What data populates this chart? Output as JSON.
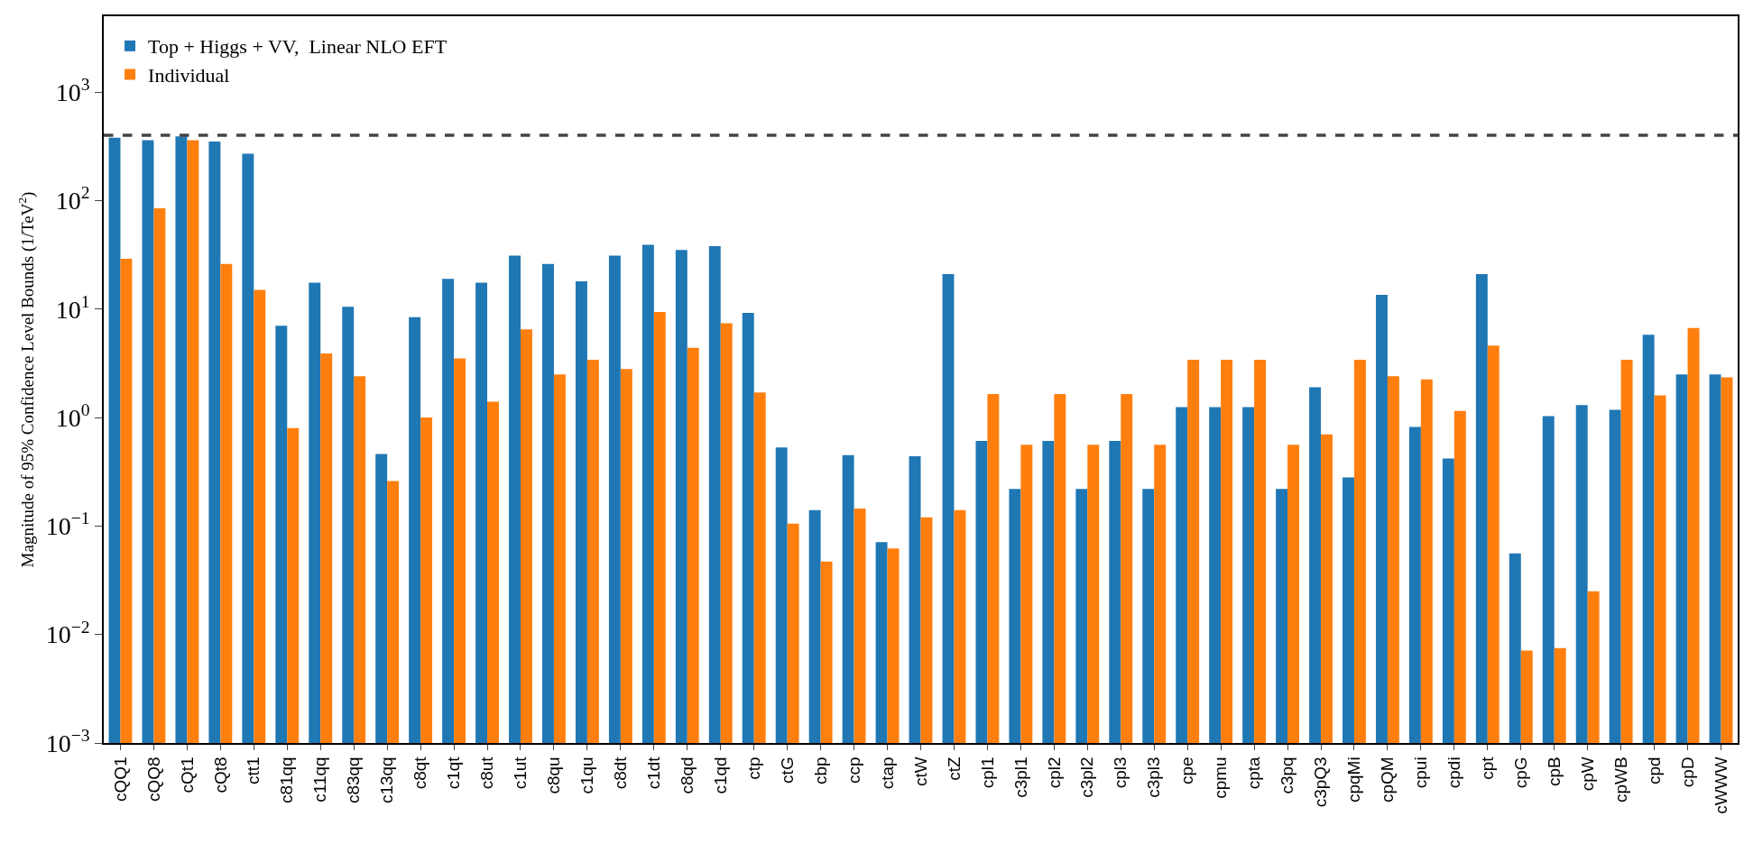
{
  "chart_data": {
    "type": "bar",
    "ylabel": "Magnitude of 95% Confidence Level Bounds (1/TeV$^{2}$)",
    "categories": [
      "cQQ1",
      "cQQ8",
      "cQt1",
      "cQt8",
      "ctt1",
      "c81qq",
      "c11qq",
      "c83qq",
      "c13qq",
      "c8qt",
      "c1qt",
      "c8ut",
      "c1ut",
      "c8qu",
      "c1qu",
      "c8dt",
      "c1dt",
      "c8qd",
      "c1qd",
      "ctp",
      "ctG",
      "cbp",
      "ccp",
      "ctap",
      "ctW",
      "ctZ",
      "cpl1",
      "c3pl1",
      "cpl2",
      "c3pl2",
      "cpl3",
      "c3pl3",
      "cpe",
      "cpmu",
      "cpta",
      "c3pq",
      "c3pQ3",
      "cpqMi",
      "cpQM",
      "cpui",
      "cpdi",
      "cpt",
      "cpG",
      "cpB",
      "cpW",
      "cpWB",
      "cpd",
      "cpD",
      "cWWW"
    ],
    "series": [
      {
        "name": "Top + Higgs + VV,  Linear NLO EFT",
        "color": "#1f77b4",
        "values": [
          380,
          360,
          390,
          350,
          270,
          7,
          17.5,
          10.5,
          0.46,
          8.4,
          19,
          17.5,
          31,
          26,
          18,
          31,
          39,
          35,
          38,
          9.2,
          0.53,
          0.14,
          0.45,
          0.071,
          0.44,
          21,
          0.61,
          0.22,
          0.61,
          0.22,
          0.61,
          0.22,
          1.25,
          1.25,
          1.25,
          0.22,
          1.9,
          0.28,
          13.5,
          0.82,
          0.42,
          21,
          0.056,
          1.03,
          1.3,
          1.18,
          5.8,
          2.5,
          2.5
        ]
      },
      {
        "name": "Individual",
        "color": "#ff7f0e",
        "values": [
          29,
          85,
          360,
          26,
          15,
          0.8,
          3.9,
          2.4,
          0.26,
          1.0,
          3.5,
          1.4,
          6.5,
          2.5,
          3.4,
          2.8,
          9.4,
          4.4,
          7.4,
          1.7,
          0.105,
          0.047,
          0.145,
          0.062,
          0.12,
          0.14,
          1.65,
          0.56,
          1.65,
          0.56,
          1.65,
          0.56,
          3.4,
          3.4,
          3.4,
          0.56,
          0.7,
          3.4,
          2.4,
          2.25,
          1.15,
          4.6,
          0.0071,
          0.0075,
          0.025,
          3.4,
          1.6,
          6.7,
          2.35
        ]
      }
    ],
    "log": "y",
    "ylim": [
      0.001,
      5000
    ],
    "yticks": [
      {
        "value": 0.001,
        "label": "10$^{−3}$"
      },
      {
        "value": 0.01,
        "label": "10$^{−2}$"
      },
      {
        "value": 0.1,
        "label": "10$^{−1}$"
      },
      {
        "value": 1,
        "label": "10$^{0}$"
      },
      {
        "value": 10,
        "label": "10$^{1}$"
      },
      {
        "value": 100,
        "label": "10$^{2}$"
      },
      {
        "value": 1000,
        "label": "10$^{3}$"
      }
    ],
    "ref_lines": [
      {
        "axis": "y",
        "value": 400,
        "color": "#444444",
        "line_style": "dashed"
      }
    ],
    "legend": "top left"
  }
}
